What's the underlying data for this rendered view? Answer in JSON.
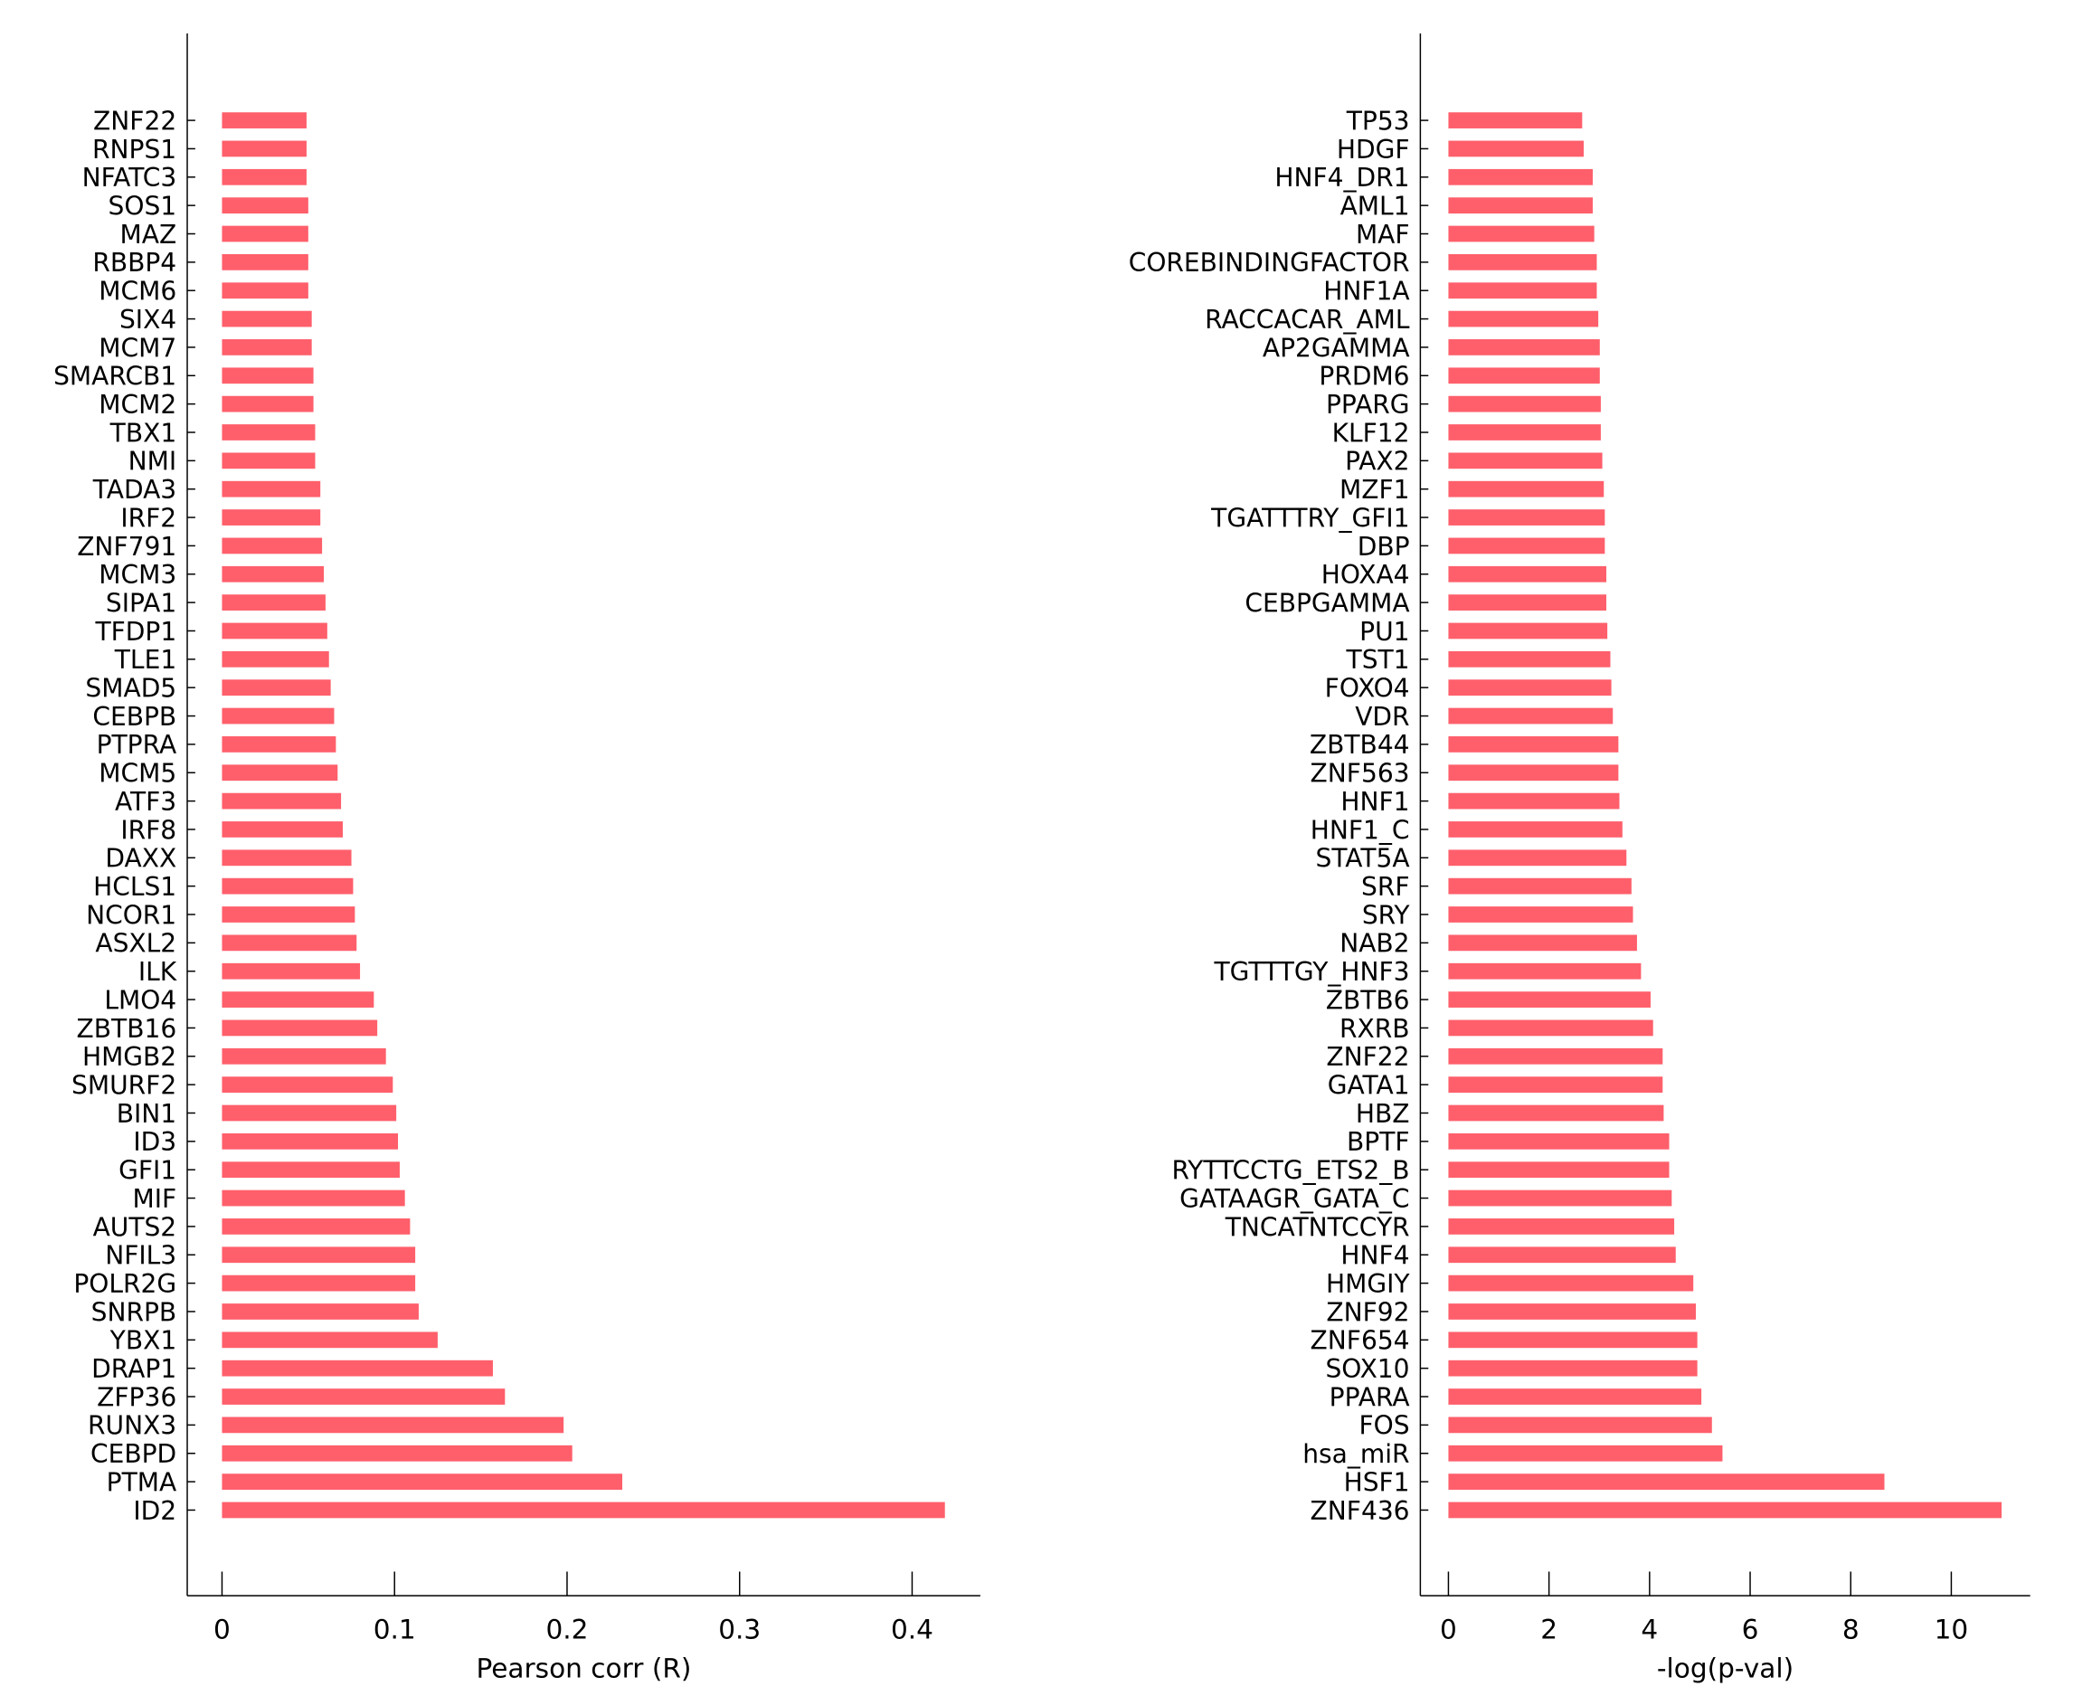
{
  "chart_data": [
    {
      "type": "bar",
      "orientation": "horizontal",
      "title": "",
      "xlabel": "Pearson corr (R)",
      "ylabel": "",
      "xlim": [
        -0.02,
        0.44
      ],
      "xticks": [
        0,
        0.1,
        0.2,
        0.3,
        0.4
      ],
      "xtick_labels": [
        "0",
        "0.1",
        "0.2",
        "0.3",
        "0.4"
      ],
      "grid": false,
      "bar_color": "#ff5f6b",
      "categories": [
        "ZNF22",
        "RNPS1",
        "NFATC3",
        "SOS1",
        "MAZ",
        "RBBP4",
        "MCM6",
        "SIX4",
        "MCM7",
        "SMARCB1",
        "MCM2",
        "TBX1",
        "NMI",
        "TADA3",
        "IRF2",
        "ZNF791",
        "MCM3",
        "SIPA1",
        "TFDP1",
        "TLE1",
        "SMAD5",
        "CEBPB",
        "PTPRA",
        "MCM5",
        "ATF3",
        "IRF8",
        "DAXX",
        "HCLS1",
        "NCOR1",
        "ASXL2",
        "ILK",
        "LMO4",
        "ZBTB16",
        "HMGB2",
        "SMURF2",
        "BIN1",
        "ID3",
        "GFI1",
        "MIF",
        "AUTS2",
        "NFIL3",
        "POLR2G",
        "SNRPB",
        "YBX1",
        "DRAP1",
        "ZFP36",
        "RUNX3",
        "CEBPD",
        "PTMA",
        "ID2"
      ],
      "values": [
        0.049,
        0.049,
        0.049,
        0.05,
        0.05,
        0.05,
        0.05,
        0.052,
        0.052,
        0.053,
        0.053,
        0.054,
        0.054,
        0.057,
        0.057,
        0.058,
        0.059,
        0.06,
        0.061,
        0.062,
        0.063,
        0.065,
        0.066,
        0.067,
        0.069,
        0.07,
        0.075,
        0.076,
        0.077,
        0.078,
        0.08,
        0.088,
        0.09,
        0.095,
        0.099,
        0.101,
        0.102,
        0.103,
        0.106,
        0.109,
        0.112,
        0.112,
        0.114,
        0.125,
        0.157,
        0.164,
        0.198,
        0.203,
        0.232,
        0.419
      ]
    },
    {
      "type": "bar",
      "orientation": "horizontal",
      "title": "",
      "xlabel": "-log(p-val)",
      "ylabel": "",
      "xlim": [
        -0.55,
        11.6
      ],
      "xticks": [
        0,
        2,
        4,
        6,
        8,
        10
      ],
      "xtick_labels": [
        "0",
        "2",
        "4",
        "6",
        "8",
        "10"
      ],
      "grid": false,
      "bar_color": "#ff5f6b",
      "categories": [
        "TP53",
        "HDGF",
        "HNF4_DR1",
        "AML1",
        "MAF",
        "COREBINDINGFACTOR",
        "HNF1A",
        "RACCACAR_AML",
        "AP2GAMMA",
        "PRDM6",
        "PPARG",
        "KLF12",
        "PAX2",
        "MZF1",
        "TGATTTRY_GFI1",
        "DBP",
        "HOXA4",
        "CEBPGAMMA",
        "PU1",
        "TST1",
        "FOXO4",
        "VDR",
        "ZBTB44",
        "ZNF563",
        "HNF1",
        "HNF1_C",
        "STAT5A",
        "SRF",
        "SRY",
        "NAB2",
        "TGTTTGY_HNF3",
        "ZBTB6",
        "RXRB",
        "ZNF22",
        "GATA1",
        "HBZ",
        "BPTF",
        "RYTTCCTG_ETS2_B",
        "GATAAGR_GATA_C",
        "TNCATNTCCYR",
        "HNF4",
        "HMGIY",
        "ZNF92",
        "ZNF654",
        "SOX10",
        "PPARA",
        "FOS",
        "hsa_miR",
        "HSF1",
        "ZNF436"
      ],
      "values": [
        2.66,
        2.69,
        2.87,
        2.87,
        2.9,
        2.95,
        2.95,
        2.98,
        3.01,
        3.01,
        3.03,
        3.03,
        3.06,
        3.09,
        3.11,
        3.11,
        3.14,
        3.14,
        3.16,
        3.22,
        3.24,
        3.27,
        3.38,
        3.38,
        3.4,
        3.46,
        3.54,
        3.64,
        3.67,
        3.75,
        3.83,
        4.02,
        4.07,
        4.26,
        4.26,
        4.28,
        4.39,
        4.39,
        4.44,
        4.49,
        4.52,
        4.87,
        4.92,
        4.95,
        4.95,
        5.03,
        5.24,
        5.45,
        8.67,
        11.0
      ]
    }
  ]
}
